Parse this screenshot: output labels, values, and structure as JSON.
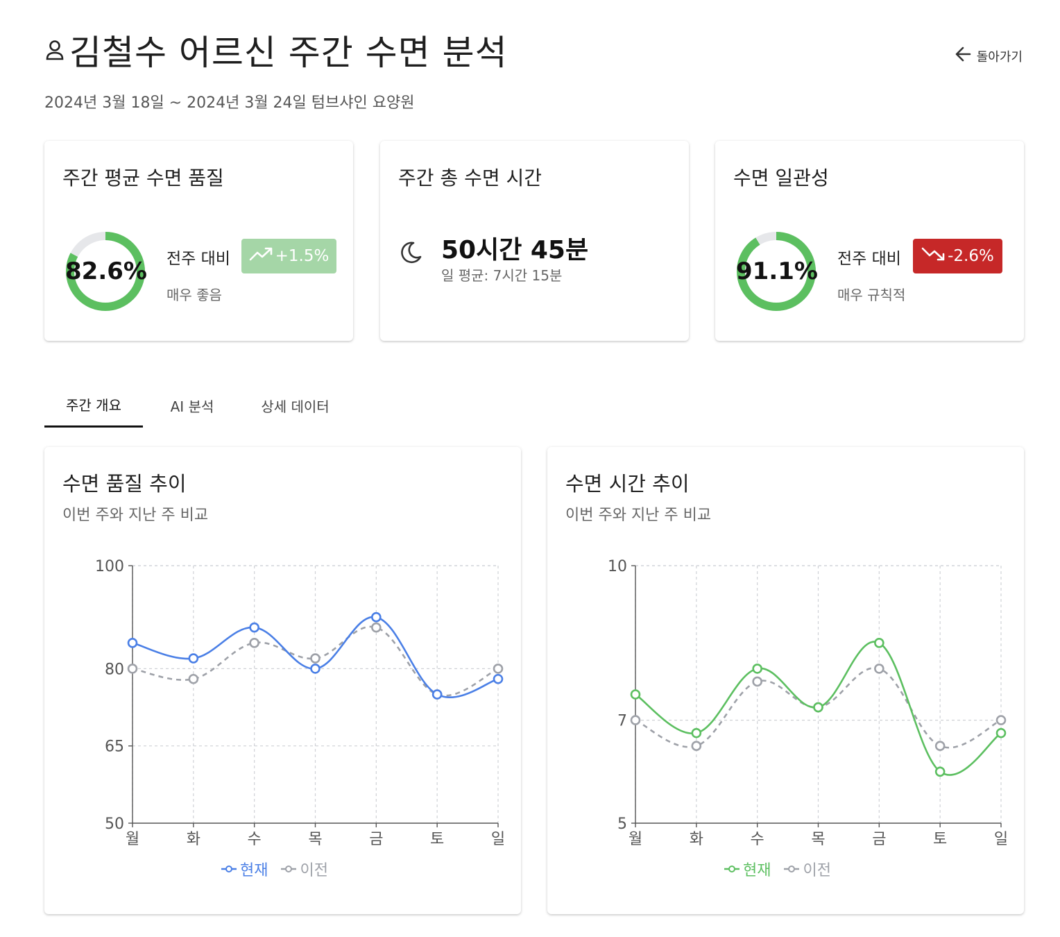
{
  "header": {
    "title": "김철수 어르신 주간 수면 분석",
    "subtitle": "2024년 3월 18일 ~ 2024년 3월 24일 텀브샤인 요양원",
    "back_label": "돌아가기"
  },
  "cards": {
    "quality": {
      "title": "주간 평균 수면 품질",
      "value_text": "82.6%",
      "value": 82.6,
      "compare_label": "전주 대비",
      "change": "+1.5%",
      "status": "매우 좋음",
      "ring_color": "#5cbf60",
      "badge_color": "#a5d6a7"
    },
    "total": {
      "title": "주간 총 수면 시간",
      "value": "50시간 45분",
      "avg": "일 평균: 7시간 15분",
      "icon": "moon-icon"
    },
    "consistency": {
      "title": "수면 일관성",
      "value_text": "91.1%",
      "value": 91.1,
      "compare_label": "전주 대비",
      "change": "-2.6%",
      "status": "매우 규칙적",
      "ring_color": "#5cbf60",
      "badge_color": "#c62828"
    }
  },
  "tabs": [
    {
      "label": "주간 개요",
      "active": true
    },
    {
      "label": "AI 분석",
      "active": false
    },
    {
      "label": "상세 데이터",
      "active": false
    }
  ],
  "chart_data": [
    {
      "type": "line",
      "title": "수면 품질 추이",
      "subtitle": "이번 주와 지난 주 비교",
      "categories": [
        "월",
        "화",
        "수",
        "목",
        "금",
        "토",
        "일"
      ],
      "yticks": [
        50,
        65,
        80,
        100
      ],
      "ylim": [
        50,
        100
      ],
      "grid": true,
      "legend": "bottom-center",
      "series": [
        {
          "name": "현재",
          "color": "#4a7fe6",
          "dashed": false,
          "values": [
            85,
            82,
            88,
            80,
            90,
            75,
            78
          ]
        },
        {
          "name": "이전",
          "color": "#9ea1a8",
          "dashed": true,
          "values": [
            80,
            78,
            85,
            82,
            88,
            75,
            80
          ]
        }
      ]
    },
    {
      "type": "line",
      "title": "수면 시간 추이",
      "subtitle": "이번 주와 지난 주 비교",
      "categories": [
        "월",
        "화",
        "수",
        "목",
        "금",
        "토",
        "일"
      ],
      "yticks": [
        5,
        7,
        10
      ],
      "ylim": [
        5,
        10
      ],
      "grid": true,
      "legend": "bottom-center",
      "series": [
        {
          "name": "현재",
          "color": "#5cbf60",
          "dashed": false,
          "values": [
            7.5,
            6.75,
            8.0,
            7.25,
            8.5,
            6.0,
            6.75
          ]
        },
        {
          "name": "이전",
          "color": "#9ea1a8",
          "dashed": true,
          "values": [
            7.0,
            6.5,
            7.75,
            7.25,
            8.0,
            6.5,
            7.0
          ]
        }
      ]
    }
  ]
}
